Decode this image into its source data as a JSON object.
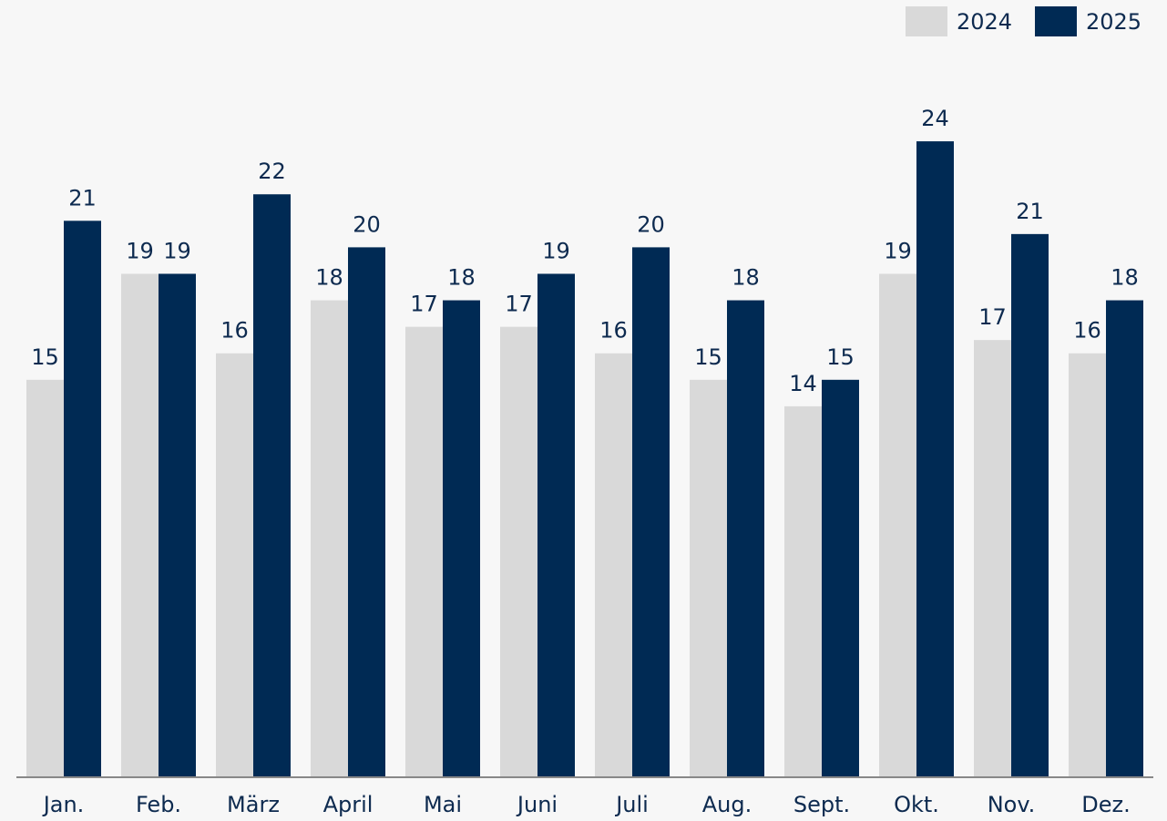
{
  "chart_data": {
    "type": "bar",
    "categories": [
      "Jan.",
      "Feb.",
      "März",
      "April",
      "Mai",
      "Juni",
      "Juli",
      "Aug.",
      "Sept.",
      "Okt.",
      "Nov.",
      "Dez."
    ],
    "series": [
      {
        "name": "2024",
        "color": "#d9d9d9",
        "values": [
          15,
          19,
          16,
          18,
          17,
          17,
          16,
          15,
          14,
          19,
          16.5,
          16
        ],
        "value_labels": [
          "15",
          "19",
          "16",
          "18",
          "17",
          "17",
          "16",
          "15",
          "14",
          "19",
          "17",
          "16"
        ]
      },
      {
        "name": "2025",
        "color": "#002a54",
        "values": [
          21,
          19,
          22,
          20,
          18,
          19,
          20,
          18,
          15,
          24,
          20.5,
          18
        ],
        "value_labels": [
          "21",
          "19",
          "22",
          "20",
          "18",
          "19",
          "20",
          "18",
          "15",
          "24",
          "21",
          "18"
        ]
      }
    ],
    "legend": "top-right"
  }
}
